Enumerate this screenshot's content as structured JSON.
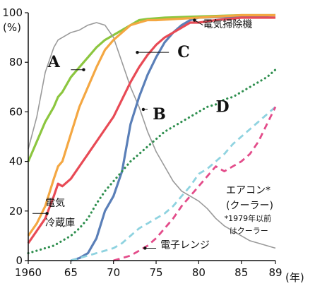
{
  "chart_data": {
    "type": "line",
    "ylabel": "(%)",
    "xlabel": "(年)",
    "xlim": [
      1960,
      1989
    ],
    "ylim": [
      0,
      100
    ],
    "x_ticks": [
      {
        "value": 1960,
        "label": "1960"
      },
      {
        "value": 1965,
        "label": "65"
      },
      {
        "value": 1970,
        "label": "70"
      },
      {
        "value": 1975,
        "label": "75"
      },
      {
        "value": 1980,
        "label": "80"
      },
      {
        "value": 1985,
        "label": "85"
      },
      {
        "value": 1989,
        "label": "89"
      }
    ],
    "y_ticks": [
      0,
      20,
      40,
      60,
      80,
      100
    ],
    "grid": false,
    "series": [
      {
        "name": "A",
        "color": "#8cc63f",
        "style": "solid",
        "points": [
          [
            1960,
            40
          ],
          [
            1961,
            48
          ],
          [
            1962,
            56
          ],
          [
            1963,
            62
          ],
          [
            1963.5,
            66
          ],
          [
            1964,
            68
          ],
          [
            1965,
            74
          ],
          [
            1966,
            78
          ],
          [
            1967,
            82
          ],
          [
            1968,
            86
          ],
          [
            1969,
            89
          ],
          [
            1970,
            91
          ],
          [
            1971,
            93
          ],
          [
            1972,
            95
          ],
          [
            1973,
            97
          ],
          [
            1974,
            97.5
          ],
          [
            1976,
            98
          ],
          [
            1980,
            98.5
          ],
          [
            1985,
            99
          ],
          [
            1989,
            99
          ]
        ]
      },
      {
        "name": "B",
        "color": "#9a9a9a",
        "style": "solid-thin",
        "points": [
          [
            1960,
            45
          ],
          [
            1961,
            58
          ],
          [
            1962,
            76
          ],
          [
            1963,
            86
          ],
          [
            1963.5,
            89
          ],
          [
            1964,
            90
          ],
          [
            1965,
            92
          ],
          [
            1966,
            93
          ],
          [
            1967,
            95
          ],
          [
            1968,
            96
          ],
          [
            1969,
            95
          ],
          [
            1970,
            90
          ],
          [
            1971,
            80
          ],
          [
            1972,
            70
          ],
          [
            1973,
            62
          ],
          [
            1974,
            52
          ],
          [
            1975,
            44
          ],
          [
            1976,
            38
          ],
          [
            1977,
            32
          ],
          [
            1978,
            28
          ],
          [
            1979,
            26
          ],
          [
            1980,
            24
          ],
          [
            1981,
            21
          ],
          [
            1982,
            17
          ],
          [
            1983,
            14
          ],
          [
            1984,
            12
          ],
          [
            1985,
            10
          ],
          [
            1986,
            8
          ],
          [
            1987,
            7
          ],
          [
            1988,
            6
          ],
          [
            1989,
            5
          ]
        ]
      },
      {
        "name": "C",
        "color": "#5a7fb8",
        "style": "solid",
        "points": [
          [
            1965,
            0
          ],
          [
            1966,
            1
          ],
          [
            1967,
            3
          ],
          [
            1968,
            9
          ],
          [
            1969,
            20
          ],
          [
            1970,
            26
          ],
          [
            1971,
            36
          ],
          [
            1972,
            55
          ],
          [
            1973,
            66
          ],
          [
            1974,
            75
          ],
          [
            1975,
            82
          ],
          [
            1976,
            88
          ],
          [
            1977,
            92
          ],
          [
            1978,
            95
          ],
          [
            1979,
            97
          ],
          [
            1980,
            98
          ],
          [
            1985,
            98.5
          ],
          [
            1989,
            99
          ]
        ]
      },
      {
        "name": "D",
        "color": "#2f8f4f",
        "style": "dotted",
        "points": [
          [
            1960,
            3
          ],
          [
            1961,
            4
          ],
          [
            1962,
            5
          ],
          [
            1963,
            6
          ],
          [
            1964,
            8
          ],
          [
            1965,
            10
          ],
          [
            1966,
            13
          ],
          [
            1967,
            17
          ],
          [
            1968,
            23
          ],
          [
            1969,
            28
          ],
          [
            1970,
            32
          ],
          [
            1971,
            36
          ],
          [
            1972,
            40
          ],
          [
            1973,
            43
          ],
          [
            1974,
            46
          ],
          [
            1975,
            49
          ],
          [
            1976,
            52
          ],
          [
            1977,
            54
          ],
          [
            1978,
            56
          ],
          [
            1979,
            58
          ],
          [
            1980,
            60
          ],
          [
            1981,
            62
          ],
          [
            1982,
            63
          ],
          [
            1983,
            65
          ],
          [
            1984,
            66
          ],
          [
            1985,
            68
          ],
          [
            1986,
            70
          ],
          [
            1987,
            72
          ],
          [
            1988,
            74
          ],
          [
            1989,
            77
          ]
        ]
      },
      {
        "name": "電気冷蔵庫",
        "color": "#f4a742",
        "style": "solid",
        "points": [
          [
            1960,
            10
          ],
          [
            1961,
            15
          ],
          [
            1962,
            22
          ],
          [
            1963,
            33
          ],
          [
            1963.5,
            38
          ],
          [
            1964,
            40
          ],
          [
            1965,
            51
          ],
          [
            1966,
            62
          ],
          [
            1967,
            70
          ],
          [
            1968,
            78
          ],
          [
            1969,
            85
          ],
          [
            1970,
            89
          ],
          [
            1971,
            92
          ],
          [
            1972,
            95
          ],
          [
            1973,
            96
          ],
          [
            1974,
            97
          ],
          [
            1975,
            97
          ],
          [
            1980,
            98
          ],
          [
            1985,
            99
          ],
          [
            1989,
            99
          ]
        ]
      },
      {
        "name": "電気掃除機",
        "color": "#e84a55",
        "style": "solid",
        "points": [
          [
            1960,
            7
          ],
          [
            1961,
            12
          ],
          [
            1962,
            17
          ],
          [
            1963,
            26
          ],
          [
            1963.5,
            31
          ],
          [
            1964,
            30
          ],
          [
            1965,
            33
          ],
          [
            1966,
            38
          ],
          [
            1967,
            43
          ],
          [
            1968,
            48
          ],
          [
            1969,
            53
          ],
          [
            1970,
            58
          ],
          [
            1971,
            65
          ],
          [
            1972,
            72
          ],
          [
            1973,
            78
          ],
          [
            1974,
            83
          ],
          [
            1975,
            87
          ],
          [
            1976,
            90
          ],
          [
            1977,
            92
          ],
          [
            1978,
            94
          ],
          [
            1979,
            96
          ],
          [
            1980,
            96
          ],
          [
            1982,
            97
          ],
          [
            1985,
            98
          ],
          [
            1989,
            98
          ]
        ]
      },
      {
        "name": "エアコン*",
        "color": "#8fd3e0",
        "style": "dashed",
        "points": [
          [
            1965,
            0
          ],
          [
            1966,
            1
          ],
          [
            1967,
            2
          ],
          [
            1968,
            3
          ],
          [
            1969,
            4
          ],
          [
            1970,
            5
          ],
          [
            1971,
            7
          ],
          [
            1972,
            10
          ],
          [
            1973,
            13
          ],
          [
            1974,
            15
          ],
          [
            1975,
            17
          ],
          [
            1976,
            19
          ],
          [
            1977,
            22
          ],
          [
            1978,
            26
          ],
          [
            1979,
            30
          ],
          [
            1980,
            35
          ],
          [
            1981,
            37
          ],
          [
            1982,
            40
          ],
          [
            1983,
            43
          ],
          [
            1984,
            47
          ],
          [
            1985,
            50
          ],
          [
            1986,
            53
          ],
          [
            1987,
            56
          ],
          [
            1988,
            59
          ],
          [
            1989,
            62
          ]
        ]
      },
      {
        "name": "電子レンジ",
        "color": "#e34c8a",
        "style": "dashed",
        "points": [
          [
            1970,
            0
          ],
          [
            1971,
            1
          ],
          [
            1972,
            2
          ],
          [
            1973,
            4
          ],
          [
            1974,
            6
          ],
          [
            1975,
            9
          ],
          [
            1976,
            13
          ],
          [
            1977,
            17
          ],
          [
            1978,
            22
          ],
          [
            1979,
            26
          ],
          [
            1980,
            30
          ],
          [
            1981,
            34
          ],
          [
            1982,
            38
          ],
          [
            1983,
            36
          ],
          [
            1984,
            38
          ],
          [
            1985,
            40
          ],
          [
            1986,
            43
          ],
          [
            1987,
            48
          ],
          [
            1988,
            55
          ],
          [
            1989,
            62
          ]
        ]
      }
    ],
    "annotations": [
      {
        "text": "A",
        "at": [
          1962.3,
          78
        ]
      },
      {
        "text": "B",
        "at": [
          1974.6,
          57
        ]
      },
      {
        "text": "C",
        "at": [
          1977.5,
          82
        ]
      },
      {
        "text": "D",
        "at": [
          1982,
          60
        ]
      },
      {
        "text": "電気",
        "at": [
          1962,
          22
        ]
      },
      {
        "text": "冷蔵庫",
        "at": [
          1962,
          14
        ]
      },
      {
        "text": "電気掃除機",
        "at": [
          1980.5,
          94
        ]
      },
      {
        "text": "エアコン*",
        "at": [
          1983.2,
          27
        ]
      },
      {
        "text": "(クーラー)",
        "at": [
          1983.2,
          21
        ]
      },
      {
        "text": "*1979年以前",
        "at": [
          1983,
          16
        ]
      },
      {
        "text": "はクーラー",
        "at": [
          1983.6,
          11
        ]
      },
      {
        "text": "電子レンジ",
        "at": [
          1975.5,
          5
        ]
      }
    ],
    "leaders": [
      {
        "from": [
          1966.5,
          77
        ],
        "to": [
          1965,
          77
        ]
      },
      {
        "from": [
          1973.5,
          61
        ],
        "to": [
          1974,
          61
        ]
      },
      {
        "from": [
          1972.8,
          84
        ],
        "to": [
          1976.5,
          84
        ]
      },
      {
        "from": [
          1979.5,
          97
        ],
        "to": [
          1980.5,
          95
        ]
      },
      {
        "from": [
          1962.2,
          19
        ],
        "to": [
          1960.5,
          19
        ]
      },
      {
        "from": [
          1973.7,
          5
        ],
        "to": [
          1975,
          5
        ]
      }
    ]
  }
}
